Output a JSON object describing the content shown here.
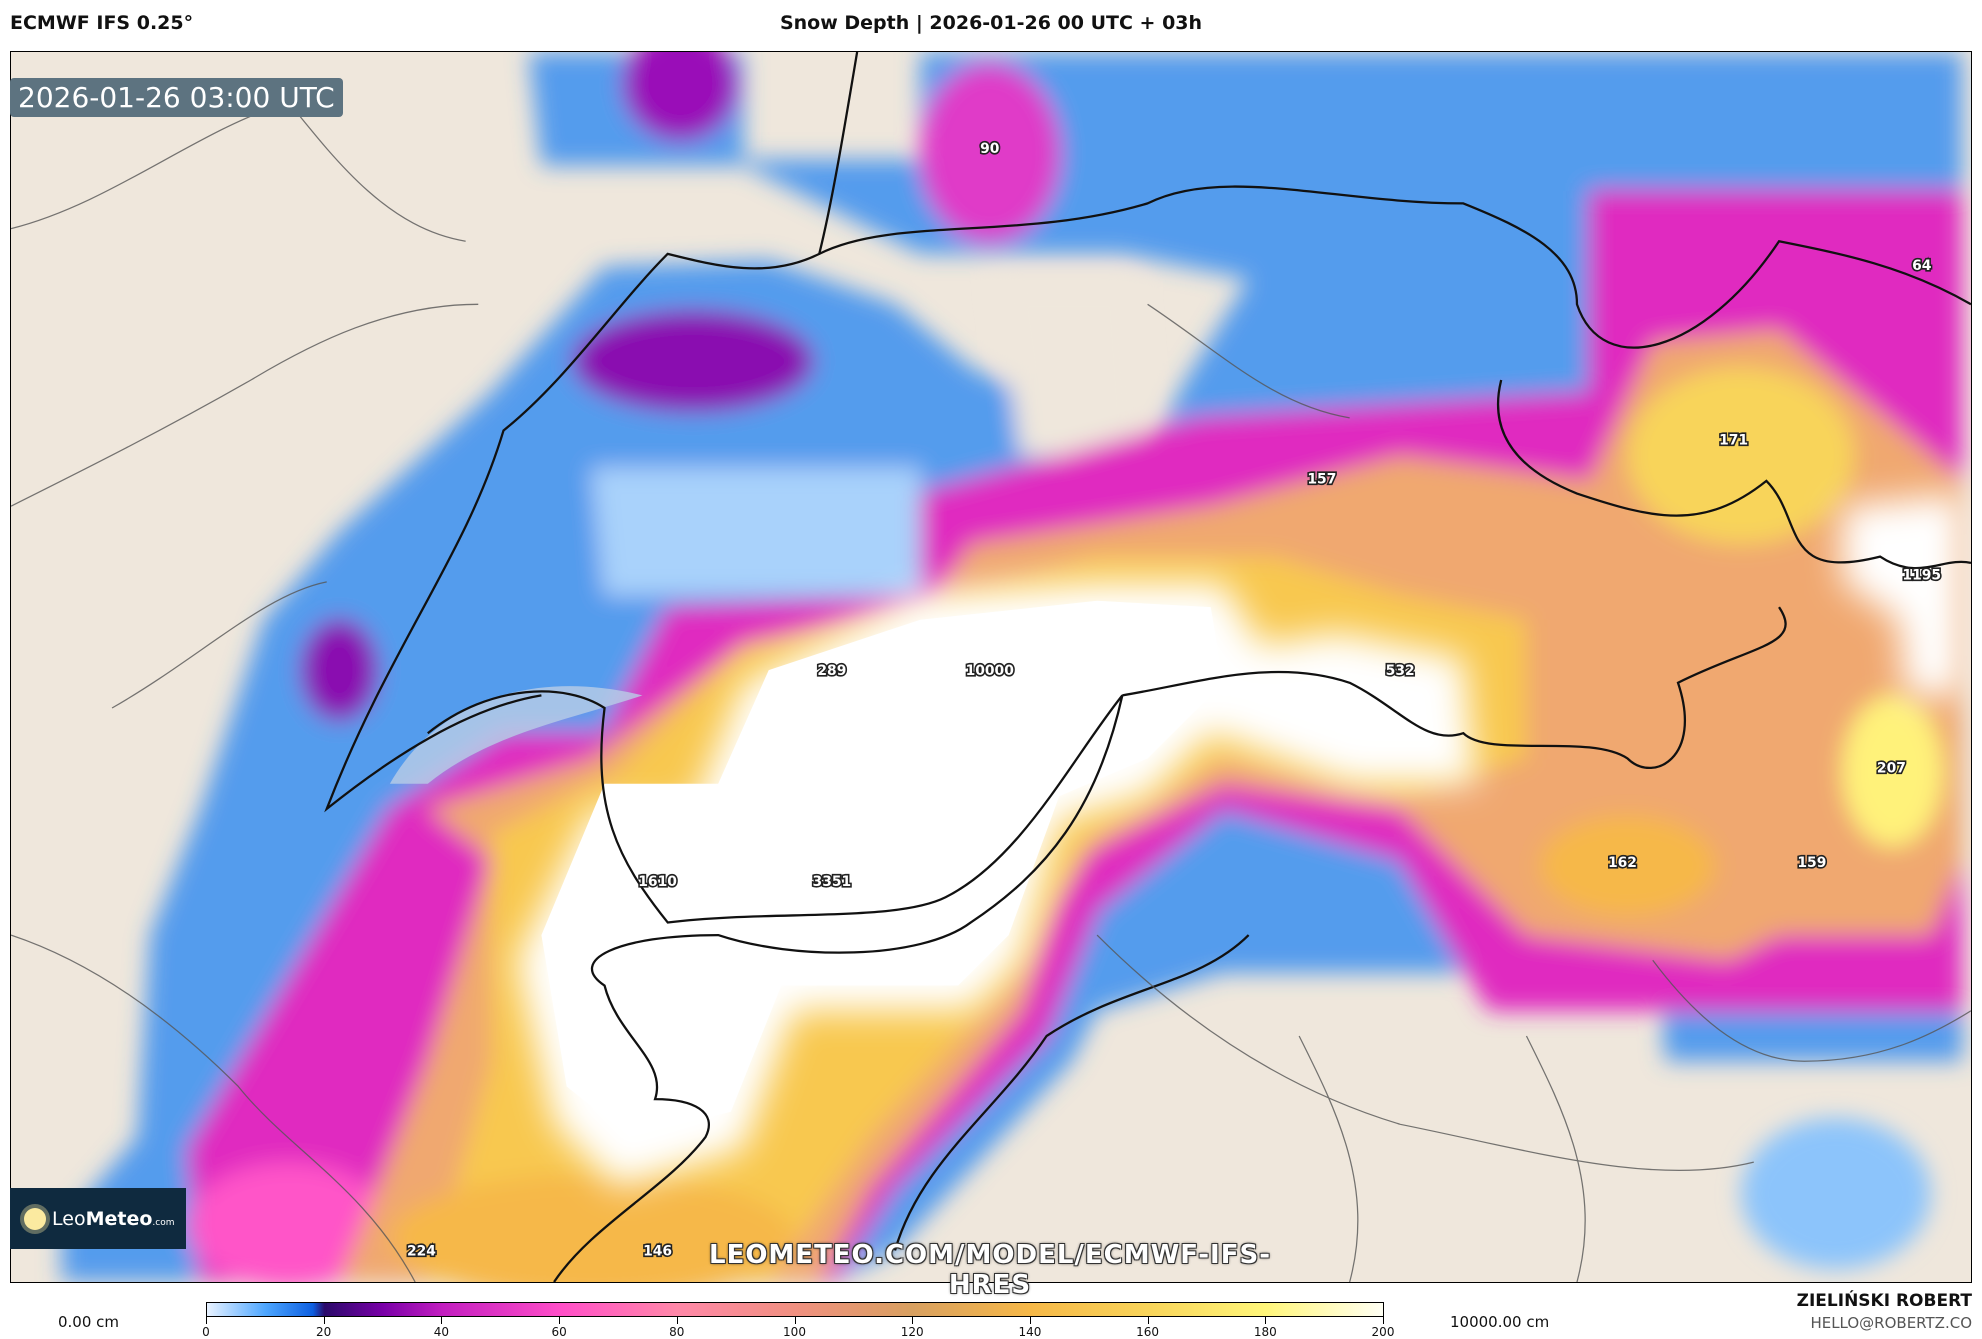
{
  "header": {
    "model": "ECMWF IFS 0.25°",
    "title": "Snow Depth | 2026-01-26 00 UTC + 03h"
  },
  "map": {
    "valid_time": "2026-01-26 03:00 UTC",
    "logo_text": {
      "leo": "Leo",
      "meteo": "Meteo",
      "com": ".com"
    },
    "watermark": "LEOMETEO.COM/MODEL/ECMWF-IFS-HRES",
    "value_labels": [
      "90",
      "64",
      "157",
      "171",
      "1195",
      "289",
      "10000",
      "532",
      "207",
      "1610",
      "3351",
      "162",
      "159",
      "224",
      "146"
    ],
    "colors": {
      "land": "#efe7dc",
      "blue": "#3a8ef0",
      "purple": "#7a00a8",
      "magenta": "#ff4ec8",
      "orange": "#f0b050",
      "yellow": "#fff67a",
      "white": "#ffffff"
    }
  },
  "legend": {
    "min_label": "0.00 cm",
    "max_label": "10000.00 cm",
    "ticks": [
      "0",
      "20",
      "40",
      "60",
      "80",
      "100",
      "120",
      "140",
      "160",
      "180",
      "200"
    ]
  },
  "credits": {
    "author": "ZIELIŃSKI ROBERT",
    "email": "HELLO@ROBERTZ.CO"
  }
}
